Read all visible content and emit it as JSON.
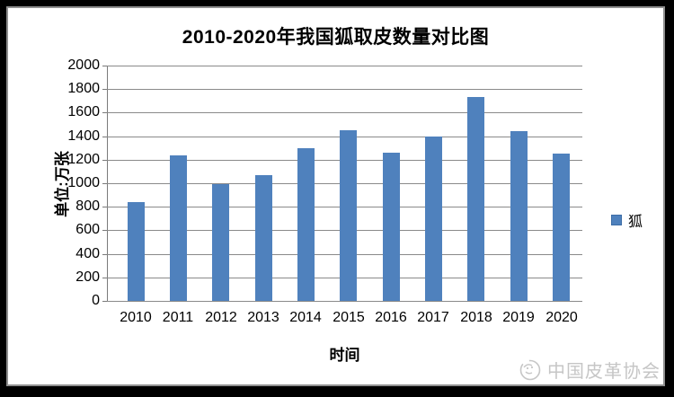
{
  "chart_data": {
    "type": "bar",
    "title": "2010-2020年我国狐取皮数量对比图",
    "xlabel": "时间",
    "ylabel": "单位:万张",
    "categories": [
      "2010",
      "2011",
      "2012",
      "2013",
      "2014",
      "2015",
      "2016",
      "2017",
      "2018",
      "2019",
      "2020"
    ],
    "series": [
      {
        "name": "狐",
        "values": [
          840,
          1240,
          990,
          1070,
          1300,
          1450,
          1260,
          1400,
          1730,
          1440,
          1250
        ]
      }
    ],
    "ylim": [
      0,
      2000
    ],
    "ytick_step": 200,
    "yticks": [
      0,
      200,
      400,
      600,
      800,
      1000,
      1200,
      1400,
      1600,
      1800,
      2000
    ],
    "grid": true,
    "legend_position": "right",
    "bar_color": "#4f81bd"
  },
  "legend": {
    "label": "狐"
  },
  "watermark": {
    "text": "中国皮革协会",
    "logo": "china-leather-association-logo",
    "color": "#c6c6c6"
  },
  "colors": {
    "bar": "#4f81bd",
    "gridline": "#8a8a8a",
    "frame_border": "#8f8f8f",
    "background": "#000000",
    "watermark": "#c6c6c6"
  }
}
